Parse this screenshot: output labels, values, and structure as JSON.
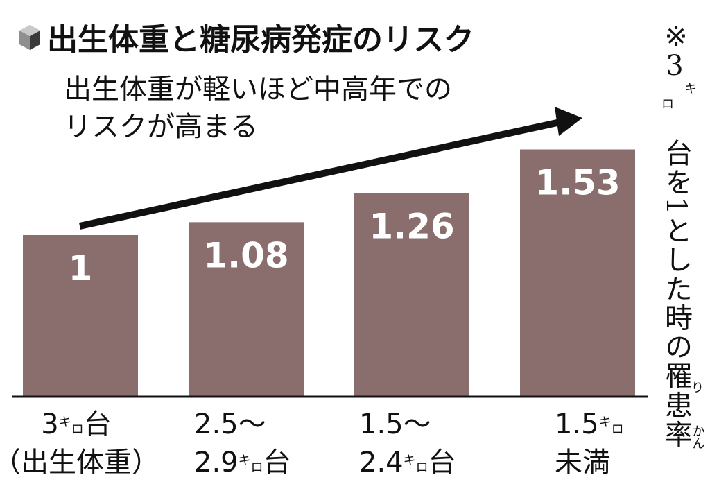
{
  "title": "出生体重と糖尿病発症のリスク",
  "subtitle_lines": [
    "出生体重が軽いほど中高年での",
    "リスクが高まる"
  ],
  "icon": "cube-icon",
  "note": {
    "mark": "※",
    "digit": "3",
    "unit_kana": [
      "キ",
      "ロ"
    ],
    "text": "台を1とした時の罹患率",
    "ruby_ri": "り",
    "ruby_kan": "かん"
  },
  "colors": {
    "bar": "#8a6e6e",
    "text": "#111111",
    "axis": "#111111"
  },
  "chart_data": {
    "type": "bar",
    "title": "出生体重と糖尿病発症のリスク",
    "categories": [
      "3キロ台（出生体重）",
      "2.5〜2.9キロ台",
      "1.5〜2.4キロ台",
      "1.5キロ未満"
    ],
    "values": [
      1,
      1.08,
      1.26,
      1.53
    ],
    "data_labels": [
      "1",
      "1.08",
      "1.26",
      "1.53"
    ],
    "category_labels": [
      [
        {
          "text": "3"
        },
        {
          "text": "キ",
          "small": true,
          "dy": -10
        },
        {
          "text": "ロ",
          "small": true,
          "dy": 0
        },
        {
          "text": "台"
        }
      ],
      [
        {
          "text": "（出生体重）"
        }
      ],
      [
        {
          "text": "2.5〜"
        }
      ],
      [
        {
          "text": "2.9"
        },
        {
          "text": "キ",
          "small": true,
          "dy": -10
        },
        {
          "text": "ロ",
          "small": true,
          "dy": 0
        },
        {
          "text": "台"
        }
      ],
      [
        {
          "text": "1.5〜"
        }
      ],
      [
        {
          "text": "2.4"
        },
        {
          "text": "キ",
          "small": true,
          "dy": -10
        },
        {
          "text": "ロ",
          "small": true,
          "dy": 0
        },
        {
          "text": "台"
        }
      ],
      [
        {
          "text": "1.5"
        },
        {
          "text": "キ",
          "small": true,
          "dy": -10
        },
        {
          "text": "ロ",
          "small": true,
          "dy": 0
        }
      ],
      [
        {
          "text": "未満"
        }
      ]
    ],
    "ylim": [
      0,
      1.8
    ],
    "grid": false,
    "legend": "none"
  }
}
